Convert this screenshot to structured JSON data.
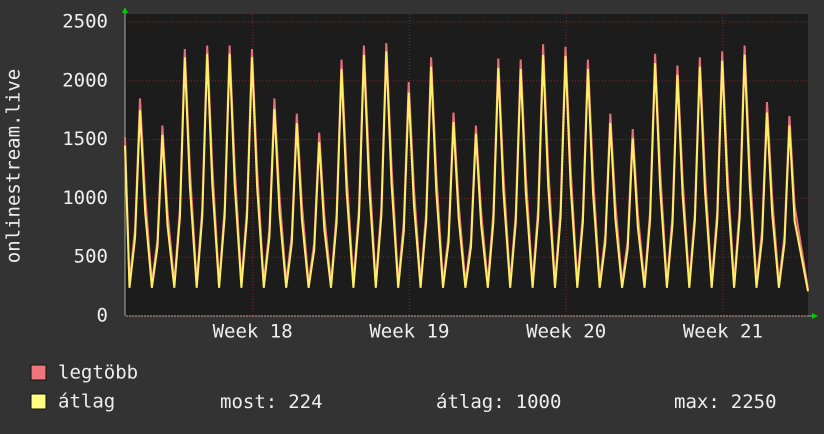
{
  "chart_data": {
    "type": "line",
    "y_label": "onlinestream.live",
    "x": [
      0,
      0.2,
      0.45,
      0.67,
      0.9,
      1.2,
      1.45,
      1.67,
      1.9,
      2.2,
      2.45,
      2.67,
      2.9,
      3.2,
      3.45,
      3.67,
      3.9,
      4.2,
      4.45,
      4.67,
      4.9,
      5.2,
      5.45,
      5.67,
      5.9,
      6.2,
      6.45,
      6.67,
      6.9,
      7.2,
      7.45,
      7.67,
      7.9,
      8.2,
      8.45,
      8.67,
      8.9,
      9.2,
      9.45,
      9.67,
      9.9,
      10.2,
      10.45,
      10.67,
      10.9,
      11.2,
      11.45,
      11.67,
      11.9,
      12.2,
      12.45,
      12.67,
      12.9,
      13.2,
      13.45,
      13.67,
      13.9,
      14.2,
      14.45,
      14.67,
      14.9,
      15.2,
      15.45,
      15.67,
      15.9,
      16.2,
      16.45,
      16.67,
      16.9,
      17.2,
      17.45,
      17.67,
      17.9,
      18.2,
      18.45,
      18.67,
      18.9,
      19.2,
      19.45,
      19.67,
      19.9,
      20.2,
      20.45,
      20.67,
      20.9,
      21.2,
      21.45,
      21.67,
      21.9,
      22.2,
      22.45,
      22.67,
      22.9,
      23.2,
      23.45,
      23.67,
      23.9,
      24.2,
      24.45,
      24.67,
      24.9,
      25.2,
      25.45,
      25.67,
      25.9,
      26.2,
      26.45,
      26.67,
      26.9,
      27.2,
      27.45,
      27.67,
      27.9,
      28.2,
      28.45,
      28.67,
      28.9,
      29.2,
      29.45,
      29.67,
      29.9,
      30.5
    ],
    "series": [
      {
        "name": "legtöbb",
        "color": "#e8707a",
        "legend_color": "#f0747c",
        "values": [
          1520,
          280,
          740,
          1850,
          1020,
          280,
          650,
          1620,
          890,
          280,
          910,
          2270,
          1250,
          280,
          920,
          2300,
          1270,
          280,
          920,
          2300,
          1270,
          280,
          910,
          2270,
          1250,
          280,
          740,
          1850,
          1020,
          280,
          690,
          1720,
          950,
          280,
          620,
          1560,
          860,
          280,
          870,
          2180,
          1200,
          280,
          920,
          2300,
          1270,
          280,
          930,
          2320,
          1280,
          280,
          800,
          1990,
          1090,
          280,
          880,
          2200,
          1210,
          280,
          690,
          1730,
          950,
          280,
          650,
          1620,
          890,
          280,
          880,
          2190,
          1200,
          280,
          870,
          2180,
          1200,
          280,
          920,
          2310,
          1270,
          280,
          920,
          2290,
          1260,
          280,
          870,
          2180,
          1200,
          280,
          690,
          1720,
          950,
          280,
          640,
          1590,
          870,
          280,
          890,
          2230,
          1230,
          280,
          850,
          2130,
          1170,
          280,
          880,
          2200,
          1210,
          280,
          900,
          2250,
          1240,
          280,
          920,
          2300,
          1270,
          280,
          730,
          1820,
          1000,
          280,
          680,
          1700,
          940,
          230
        ]
      },
      {
        "name": "átlag",
        "color": "#ffee66",
        "legend_color": "#ffff80",
        "values": [
          1450,
          240,
          670,
          1750,
          880,
          240,
          590,
          1540,
          770,
          240,
          840,
          2200,
          1100,
          240,
          850,
          2230,
          1120,
          240,
          850,
          2230,
          1120,
          240,
          840,
          2200,
          1100,
          240,
          670,
          1760,
          880,
          240,
          620,
          1640,
          820,
          240,
          560,
          1480,
          740,
          240,
          800,
          2100,
          1050,
          240,
          840,
          2220,
          1110,
          240,
          860,
          2250,
          1130,
          240,
          720,
          1900,
          950,
          240,
          810,
          2120,
          1060,
          240,
          630,
          1650,
          830,
          240,
          590,
          1550,
          780,
          240,
          800,
          2110,
          1060,
          240,
          800,
          2100,
          1050,
          240,
          840,
          2220,
          1110,
          240,
          840,
          2210,
          1110,
          240,
          800,
          2100,
          1050,
          240,
          620,
          1640,
          820,
          240,
          570,
          1510,
          760,
          240,
          820,
          2150,
          1080,
          240,
          780,
          2050,
          1030,
          240,
          810,
          2120,
          1060,
          240,
          820,
          2170,
          1090,
          240,
          840,
          2220,
          1110,
          240,
          660,
          1730,
          870,
          240,
          620,
          1620,
          810,
          210
        ]
      }
    ],
    "xlim": [
      0,
      30.5
    ],
    "xticks": [
      {
        "value": 5.7,
        "label": "Week 18"
      },
      {
        "value": 12.7,
        "label": "Week 19"
      },
      {
        "value": 19.7,
        "label": "Week 20"
      },
      {
        "value": 26.7,
        "label": "Week 21"
      }
    ],
    "ylim": [
      0,
      2500
    ],
    "yticks": [
      0,
      500,
      1000,
      1500,
      2000,
      2500
    ],
    "grid": true,
    "stats": [
      {
        "label": "most:",
        "value": 224
      },
      {
        "label": "átlag:",
        "value": 1000
      },
      {
        "label": "max:",
        "value": 2250
      }
    ]
  }
}
